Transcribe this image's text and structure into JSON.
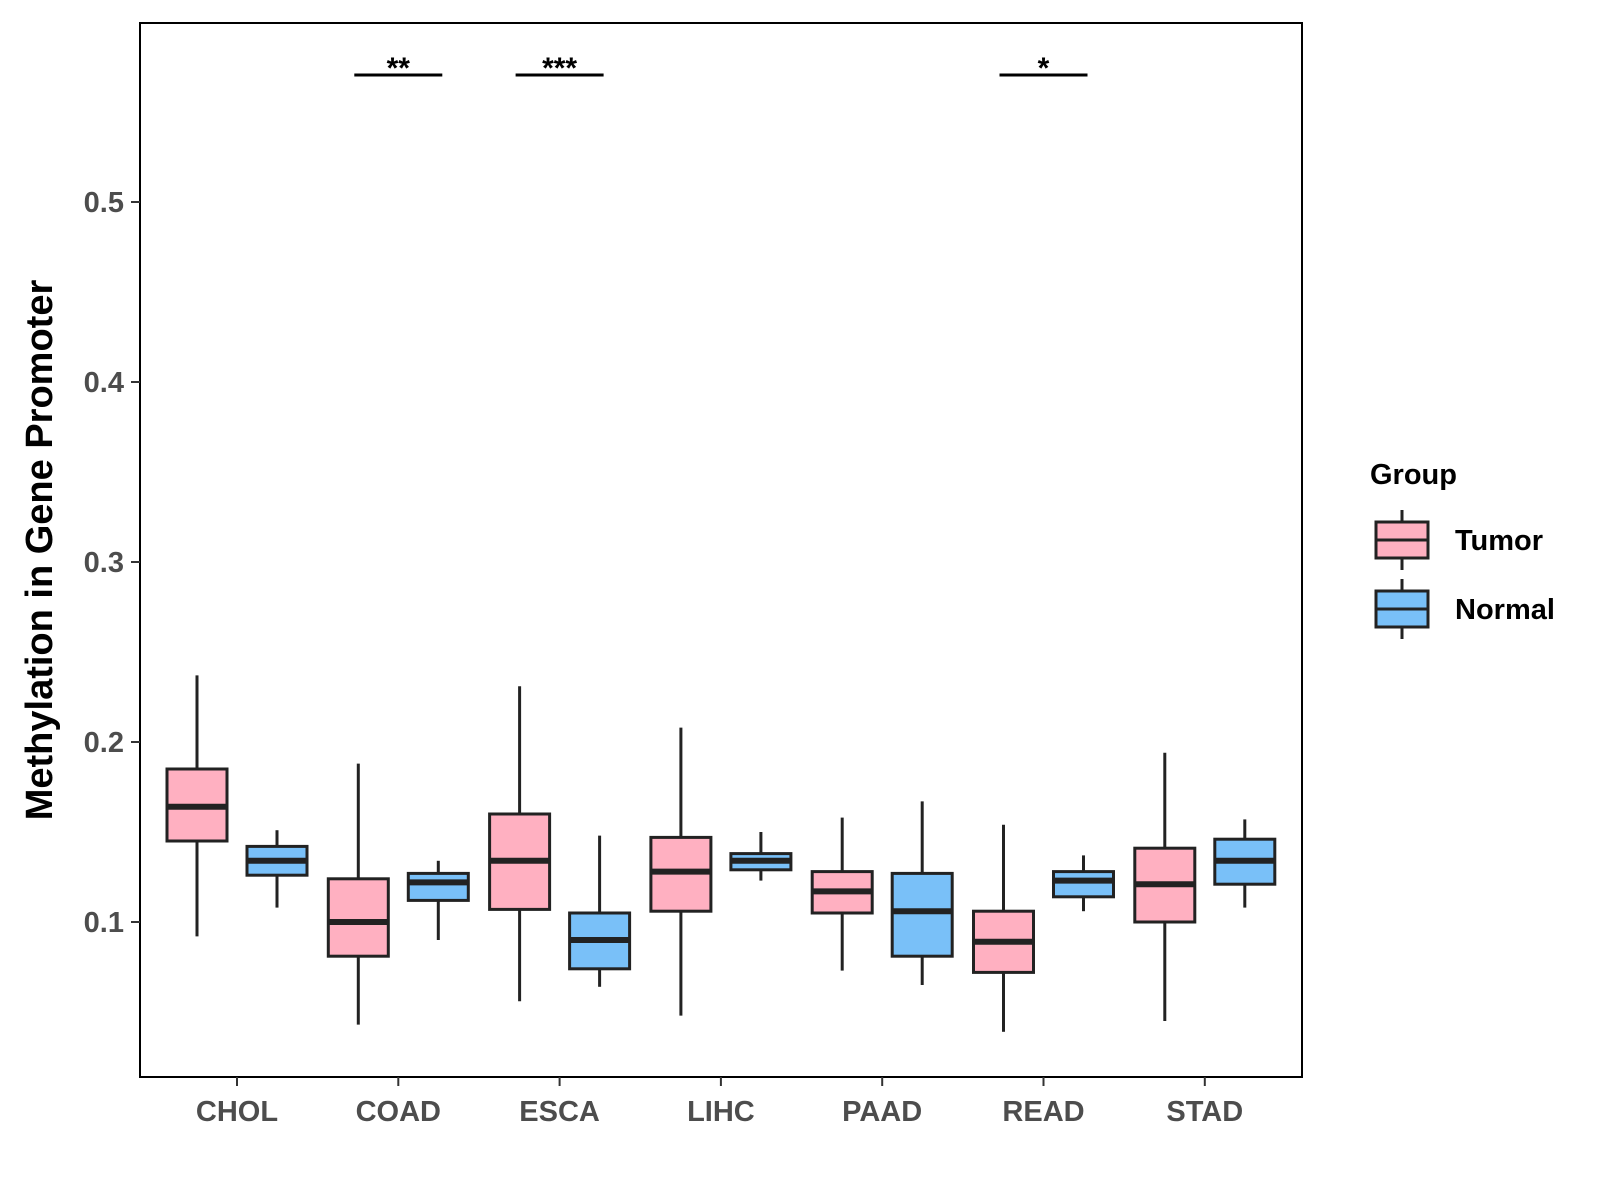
{
  "chart_data": {
    "type": "boxplot",
    "title": "",
    "xlabel": "",
    "ylabel": "Methylation in Gene Promoter",
    "ylim": [
      0.03,
      0.6
    ],
    "yticks": [
      0.1,
      0.2,
      0.3,
      0.4,
      0.5
    ],
    "ytick_labels": [
      "0.1",
      "0.2",
      "0.3",
      "0.4",
      "0.5"
    ],
    "categories": [
      "CHOL",
      "COAD",
      "ESCA",
      "LIHC",
      "PAAD",
      "READ",
      "STAD"
    ],
    "legend": {
      "title": "Group",
      "position": "right",
      "entries": [
        {
          "name": "Tumor",
          "color": "#ffb0c1"
        },
        {
          "name": "Normal",
          "color": "#79c0f8"
        }
      ]
    },
    "series": [
      {
        "name": "Tumor",
        "color": "#ffb0c1",
        "boxes": [
          {
            "category": "CHOL",
            "min": 0.092,
            "q1": 0.145,
            "median": 0.164,
            "q3": 0.185,
            "max": 0.237
          },
          {
            "category": "COAD",
            "min": 0.043,
            "q1": 0.081,
            "median": 0.1,
            "q3": 0.124,
            "max": 0.188
          },
          {
            "category": "ESCA",
            "min": 0.056,
            "q1": 0.107,
            "median": 0.134,
            "q3": 0.16,
            "max": 0.231
          },
          {
            "category": "LIHC",
            "min": 0.048,
            "q1": 0.106,
            "median": 0.128,
            "q3": 0.147,
            "max": 0.208
          },
          {
            "category": "PAAD",
            "min": 0.073,
            "q1": 0.105,
            "median": 0.117,
            "q3": 0.128,
            "max": 0.158
          },
          {
            "category": "READ",
            "min": 0.039,
            "q1": 0.072,
            "median": 0.089,
            "q3": 0.106,
            "max": 0.154
          },
          {
            "category": "STAD",
            "min": 0.045,
            "q1": 0.1,
            "median": 0.121,
            "q3": 0.141,
            "max": 0.194
          }
        ]
      },
      {
        "name": "Normal",
        "color": "#79c0f8",
        "boxes": [
          {
            "category": "CHOL",
            "min": 0.108,
            "q1": 0.126,
            "median": 0.134,
            "q3": 0.142,
            "max": 0.151
          },
          {
            "category": "COAD",
            "min": 0.09,
            "q1": 0.112,
            "median": 0.122,
            "q3": 0.127,
            "max": 0.134
          },
          {
            "category": "ESCA",
            "min": 0.064,
            "q1": 0.074,
            "median": 0.09,
            "q3": 0.105,
            "max": 0.148
          },
          {
            "category": "LIHC",
            "min": 0.123,
            "q1": 0.129,
            "median": 0.134,
            "q3": 0.138,
            "max": 0.15
          },
          {
            "category": "PAAD",
            "min": 0.065,
            "q1": 0.081,
            "median": 0.106,
            "q3": 0.127,
            "max": 0.167
          },
          {
            "category": "READ",
            "min": 0.106,
            "q1": 0.114,
            "median": 0.123,
            "q3": 0.128,
            "max": 0.137
          },
          {
            "category": "STAD",
            "min": 0.108,
            "q1": 0.121,
            "median": 0.134,
            "q3": 0.146,
            "max": 0.157
          }
        ]
      }
    ],
    "significance": [
      {
        "category": "COAD",
        "label": "**"
      },
      {
        "category": "ESCA",
        "label": "***"
      },
      {
        "category": "READ",
        "label": "*"
      }
    ]
  }
}
